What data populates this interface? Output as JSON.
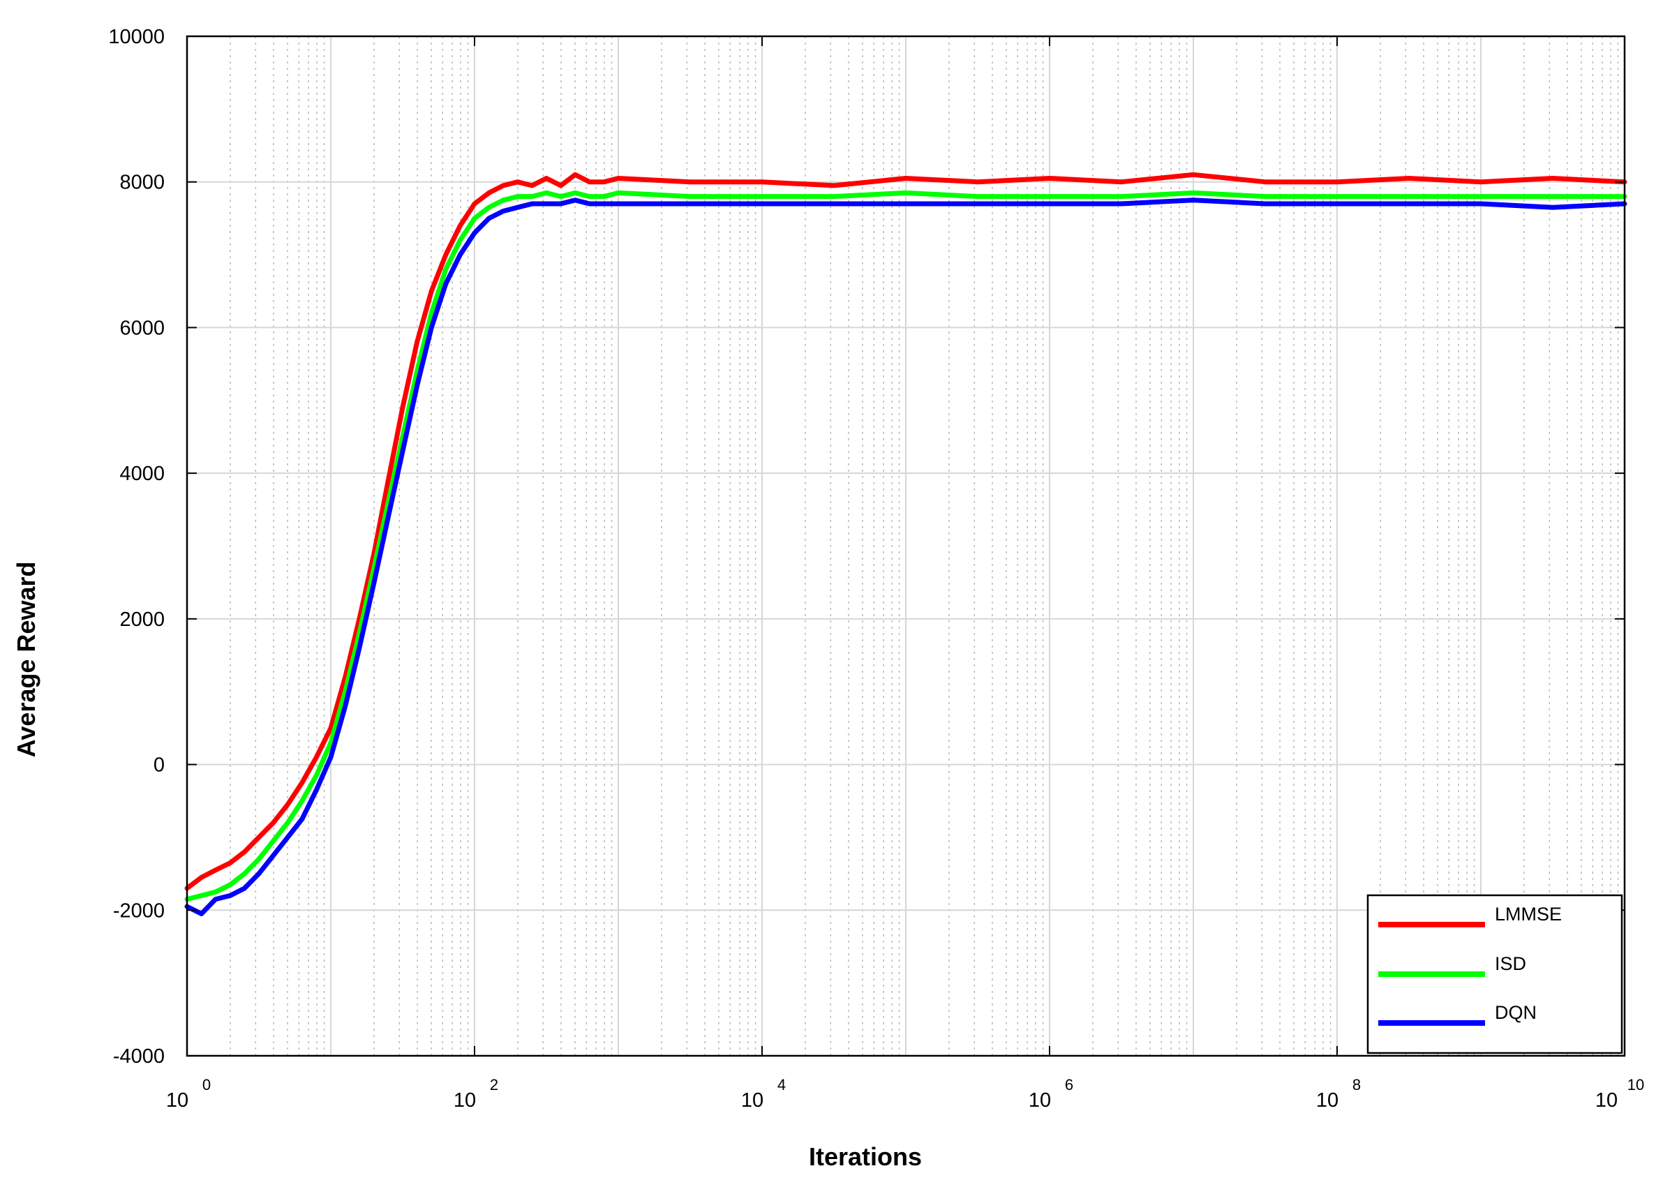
{
  "chart_data": {
    "type": "line",
    "title": "",
    "xlabel": "Iterations",
    "ylabel": "Average Reward",
    "xscale": "log",
    "xlim": [
      1,
      10000000000
    ],
    "ylim": [
      -4000,
      10000
    ],
    "yticks": [
      {
        "value": 10000,
        "label": "10000"
      },
      {
        "value": 8000,
        "label": "8000"
      },
      {
        "value": 6000,
        "label": "6000"
      },
      {
        "value": 4000,
        "label": "4000"
      },
      {
        "value": 2000,
        "label": "2000"
      },
      {
        "value": 0,
        "label": "0"
      },
      {
        "value": -2000,
        "label": "-2000"
      },
      {
        "value": -4000,
        "label": "-4000"
      }
    ],
    "xticks": [
      {
        "value": 1,
        "base": "10",
        "exp": "0"
      },
      {
        "value": 100,
        "base": "10",
        "exp": "2"
      },
      {
        "value": 10000,
        "base": "10",
        "exp": "4"
      },
      {
        "value": 1000000,
        "base": "10",
        "exp": "6"
      },
      {
        "value": 100000000,
        "base": "10",
        "exp": "8"
      },
      {
        "value": 10000000000,
        "base": "10",
        "exp": "10"
      }
    ],
    "grid": true,
    "legend_position": "bottom-right",
    "series": [
      {
        "name": "LMMSE",
        "color": "#ff0000",
        "x": [
          1,
          1.26,
          1.58,
          2,
          2.51,
          3.16,
          3.98,
          5.01,
          6.31,
          7.94,
          10,
          12.6,
          15.8,
          20,
          25.1,
          31.6,
          39.8,
          50.1,
          63.1,
          79.4,
          100,
          125.9,
          158.5,
          199.5,
          251.2,
          316.2,
          398.1,
          501.2,
          631,
          794.3,
          1000,
          3162,
          10000,
          31623,
          100000,
          316228,
          1000000,
          3162278,
          10000000,
          31622777,
          100000000,
          316227766,
          1000000000,
          3162277660,
          10000000000
        ],
        "y": [
          -1700,
          -1550,
          -1450,
          -1350,
          -1200,
          -1000,
          -800,
          -550,
          -250,
          100,
          500,
          1200,
          2000,
          2900,
          3900,
          4900,
          5800,
          6500,
          7000,
          7400,
          7700,
          7850,
          7950,
          8000,
          7950,
          8050,
          7950,
          8100,
          8000,
          8000,
          8050,
          8000,
          8000,
          7950,
          8050,
          8000,
          8050,
          8000,
          8100,
          8000,
          8000,
          8050,
          8000,
          8050,
          8000
        ]
      },
      {
        "name": "ISD",
        "color": "#00ff00",
        "x": [
          1,
          1.26,
          1.58,
          2,
          2.51,
          3.16,
          3.98,
          5.01,
          6.31,
          7.94,
          10,
          12.6,
          15.8,
          20,
          25.1,
          31.6,
          39.8,
          50.1,
          63.1,
          79.4,
          100,
          125.9,
          158.5,
          199.5,
          251.2,
          316.2,
          398.1,
          501.2,
          631,
          794.3,
          1000,
          3162,
          10000,
          31623,
          100000,
          316228,
          1000000,
          3162278,
          10000000,
          31622777,
          100000000,
          316227766,
          1000000000,
          3162277660,
          10000000000
        ],
        "y": [
          -1850,
          -1800,
          -1750,
          -1650,
          -1500,
          -1300,
          -1050,
          -800,
          -500,
          -150,
          300,
          1000,
          1800,
          2700,
          3600,
          4500,
          5400,
          6200,
          6800,
          7200,
          7500,
          7650,
          7750,
          7800,
          7800,
          7850,
          7800,
          7850,
          7800,
          7800,
          7850,
          7800,
          7800,
          7800,
          7850,
          7800,
          7800,
          7800,
          7850,
          7800,
          7800,
          7800,
          7800,
          7800,
          7800
        ]
      },
      {
        "name": "DQN",
        "color": "#0000ff",
        "x": [
          1,
          1.26,
          1.58,
          2,
          2.51,
          3.16,
          3.98,
          5.01,
          6.31,
          7.94,
          10,
          12.6,
          15.8,
          20,
          25.1,
          31.6,
          39.8,
          50.1,
          63.1,
          79.4,
          100,
          125.9,
          158.5,
          199.5,
          251.2,
          316.2,
          398.1,
          501.2,
          631,
          794.3,
          1000,
          3162,
          10000,
          31623,
          100000,
          316228,
          1000000,
          3162278,
          10000000,
          31622777,
          100000000,
          316227766,
          1000000000,
          3162277660,
          10000000000
        ],
        "y": [
          -1950,
          -2050,
          -1850,
          -1800,
          -1700,
          -1500,
          -1250,
          -1000,
          -750,
          -350,
          100,
          800,
          1600,
          2500,
          3400,
          4300,
          5200,
          6000,
          6600,
          7000,
          7300,
          7500,
          7600,
          7650,
          7700,
          7700,
          7700,
          7750,
          7700,
          7700,
          7700,
          7700,
          7700,
          7700,
          7700,
          7700,
          7700,
          7700,
          7750,
          7700,
          7700,
          7700,
          7700,
          7650,
          7700
        ]
      }
    ]
  }
}
